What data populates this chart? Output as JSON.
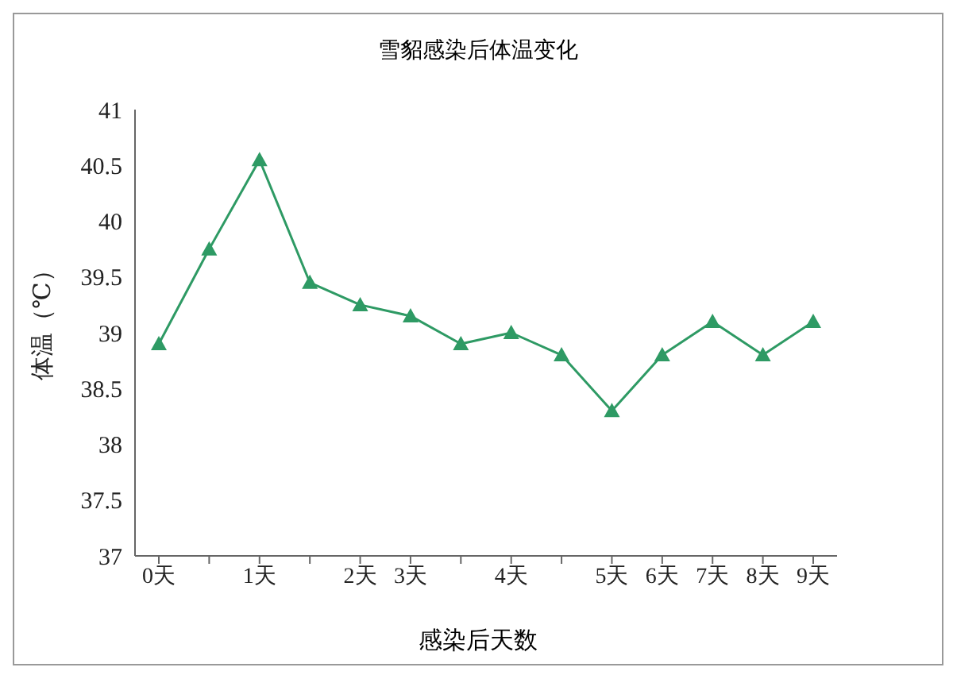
{
  "chart_data": {
    "type": "line",
    "title": "雪貂感染后体温变化",
    "xlabel": "感染后天数",
    "ylabel": "体温（℃）",
    "categories": [
      "0天",
      null,
      "1天",
      null,
      "2天",
      "3天",
      null,
      "4天",
      null,
      "5天",
      "6天",
      "7天",
      "8天",
      "9天"
    ],
    "series": [
      {
        "color": "#2e9a64",
        "values": [
          38.9,
          39.75,
          40.55,
          39.45,
          39.25,
          39.15,
          38.9,
          39.0,
          38.8,
          38.3,
          38.8,
          39.1,
          38.8,
          39.1
        ]
      }
    ],
    "ylim": [
      37,
      41
    ],
    "yticks": [
      37,
      37.5,
      38,
      38.5,
      39,
      39.5,
      40,
      40.5,
      41
    ],
    "grid": false,
    "legend": false,
    "marker": "triangle",
    "line_style": "solid"
  }
}
